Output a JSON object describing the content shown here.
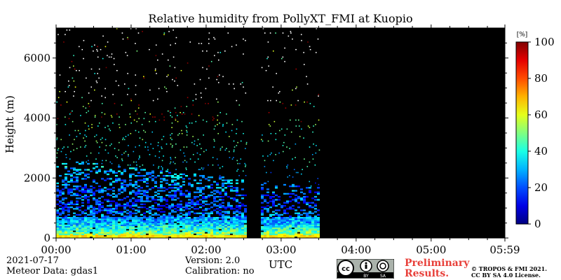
{
  "chart_data": {
    "type": "heatmap",
    "title": "Relative humidity from PollyXT_FMI at Kuopio",
    "xlabel": "UTC",
    "ylabel": "Height (m)",
    "x_ticks": [
      "00:00",
      "01:00",
      "02:00",
      "03:00",
      "04:00",
      "05:00",
      "05:59"
    ],
    "y_ticks": [
      0,
      2000,
      4000,
      6000
    ],
    "ylim": [
      0,
      7000
    ],
    "colorbar": {
      "unit": "[%]",
      "range": [
        0,
        100
      ],
      "ticks": [
        0,
        20,
        40,
        60,
        80,
        100
      ],
      "colormap": "jet"
    },
    "data_gaps_utc": [
      [
        "02:32",
        "02:43"
      ],
      [
        "03:30",
        "05:59"
      ]
    ],
    "background_color": "#000000",
    "profile": {
      "description_values_rh_percent_by_height_m": [
        {
          "height": 0,
          "rh": 62
        },
        {
          "height": 200,
          "rh": 45
        },
        {
          "height": 500,
          "rh": 30
        },
        {
          "height": 1000,
          "rh": 20
        },
        {
          "height": 1500,
          "rh": 22
        },
        {
          "height": 2000,
          "rh": 28
        },
        {
          "height": 2500,
          "rh": 35
        },
        {
          "height": 3000,
          "rh": 40
        },
        {
          "height": 4000,
          "rh": 50
        }
      ]
    }
  },
  "footer": {
    "date": "2021-07-17",
    "meteor": "Meteor Data: gdas1",
    "version": "Version: 2.0",
    "calibration": "Calibration: no",
    "preliminary": "Preliminary",
    "results": "Results.",
    "copyright_1": "© TROPOS & FMI 2021.",
    "copyright_2": "CC BY SA 4.0 License.",
    "cc_badge": {
      "cc": "cc",
      "by": "BY",
      "sa": "SA"
    }
  }
}
